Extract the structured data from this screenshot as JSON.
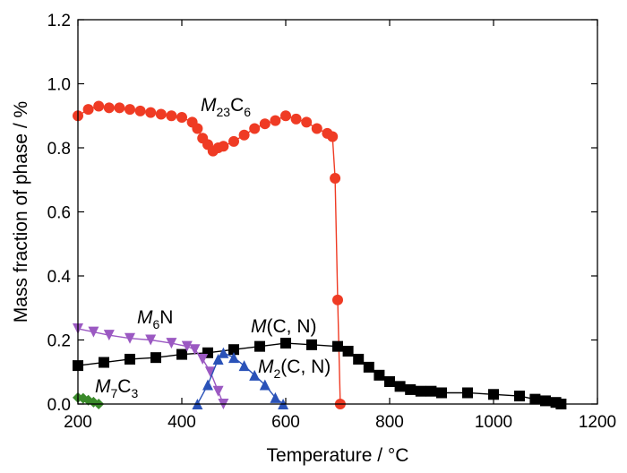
{
  "chart_data": {
    "type": "scatter",
    "xlabel": "Temperature / °C",
    "ylabel": "Mass fraction of phase / %",
    "xlim": [
      200,
      1200
    ],
    "ylim": [
      0,
      1.2
    ],
    "xticks": [
      200,
      400,
      600,
      800,
      1000,
      1200
    ],
    "yticks": [
      0.0,
      0.2,
      0.4,
      0.6,
      0.8,
      1.0,
      1.2
    ],
    "xtick_labels": [
      "200",
      "400",
      "600",
      "800",
      "1000",
      "1200"
    ],
    "ytick_labels": [
      "0.0",
      "0.2",
      "0.4",
      "0.6",
      "0.8",
      "1.0",
      "1.2"
    ],
    "grid": false,
    "legend": "none",
    "series": [
      {
        "name": "M23C6",
        "label_parts": [
          "M",
          "23",
          "C",
          "6"
        ],
        "color": "#ef3b24",
        "marker": "circle",
        "x": [
          200,
          220,
          240,
          260,
          280,
          300,
          320,
          340,
          360,
          380,
          400,
          420,
          430,
          440,
          450,
          460,
          470,
          480,
          500,
          520,
          540,
          560,
          580,
          600,
          620,
          640,
          660,
          680,
          690,
          695,
          700,
          705
        ],
        "y": [
          0.9,
          0.92,
          0.93,
          0.925,
          0.925,
          0.92,
          0.915,
          0.91,
          0.905,
          0.9,
          0.895,
          0.88,
          0.86,
          0.83,
          0.81,
          0.79,
          0.8,
          0.805,
          0.82,
          0.84,
          0.86,
          0.875,
          0.885,
          0.9,
          0.89,
          0.88,
          0.86,
          0.845,
          0.835,
          0.705,
          0.325,
          0.0
        ]
      },
      {
        "name": "M(C, N)",
        "label_parts": [
          "M",
          "(C, N)"
        ],
        "color": "#000000",
        "marker": "square",
        "x": [
          200,
          250,
          300,
          350,
          400,
          450,
          500,
          550,
          600,
          650,
          700,
          720,
          740,
          760,
          780,
          800,
          820,
          840,
          860,
          880,
          900,
          950,
          1000,
          1050,
          1080,
          1100,
          1120,
          1130
        ],
        "y": [
          0.12,
          0.13,
          0.14,
          0.145,
          0.155,
          0.16,
          0.17,
          0.18,
          0.19,
          0.185,
          0.18,
          0.165,
          0.14,
          0.115,
          0.09,
          0.07,
          0.055,
          0.045,
          0.04,
          0.04,
          0.035,
          0.035,
          0.03,
          0.025,
          0.015,
          0.01,
          0.005,
          0.0
        ]
      },
      {
        "name": "M6N",
        "label_parts": [
          "M",
          "6",
          "N"
        ],
        "color": "#9b59c2",
        "marker": "triangle-down",
        "x": [
          200,
          230,
          260,
          300,
          340,
          380,
          410,
          425,
          440,
          455,
          470,
          480
        ],
        "y": [
          0.235,
          0.225,
          0.215,
          0.205,
          0.2,
          0.19,
          0.18,
          0.17,
          0.14,
          0.1,
          0.04,
          0.0
        ]
      },
      {
        "name": "M2(C, N)",
        "label_parts": [
          "M",
          "2",
          "(C, N)"
        ],
        "color": "#2a52b8",
        "marker": "triangle-up",
        "x": [
          430,
          450,
          470,
          480,
          500,
          520,
          540,
          560,
          580,
          595
        ],
        "y": [
          0.0,
          0.06,
          0.14,
          0.16,
          0.145,
          0.12,
          0.09,
          0.06,
          0.02,
          0.0
        ]
      },
      {
        "name": "M7C3",
        "label_parts": [
          "M",
          "7",
          "C",
          "3"
        ],
        "color": "#3a8a2a",
        "marker": "diamond",
        "x": [
          200,
          210,
          220,
          230,
          240
        ],
        "y": [
          0.02,
          0.018,
          0.012,
          0.006,
          0.0
        ]
      }
    ]
  }
}
